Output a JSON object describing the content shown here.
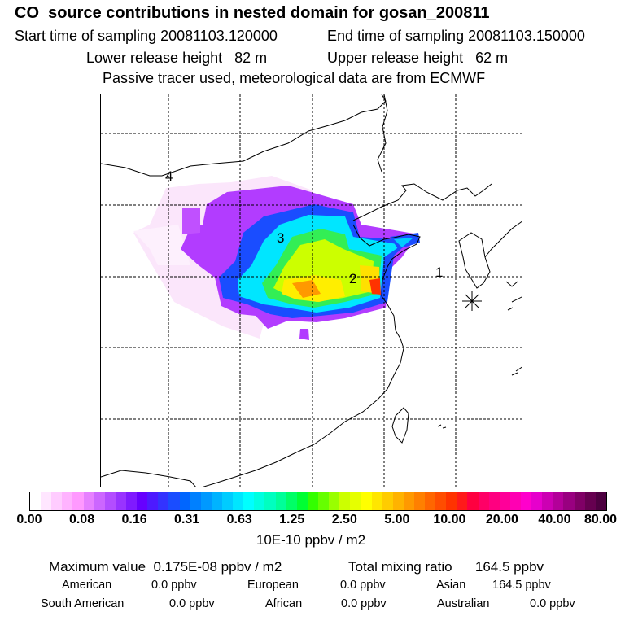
{
  "header": {
    "title": "CO  source contributions in nested domain for gosan_200811",
    "start_time": "Start time of sampling 20081103.120000",
    "end_time": "End time of sampling 20081103.150000",
    "lower_height": "Lower release height   82 m",
    "upper_height": "Upper release height   62 m",
    "tracer_note": "Passive tracer used, meteorological data are from ECMWF"
  },
  "map": {
    "station_labels": [
      "1",
      "2",
      "3",
      "4"
    ],
    "receptor_marker": "asterisk-marker"
  },
  "colorbar": {
    "tick_labels": [
      "0.00",
      "0.08",
      "0.16",
      "0.31",
      "0.63",
      "1.25",
      "2.50",
      "5.00",
      "10.00",
      "20.00",
      "40.00",
      "80.00"
    ],
    "units": "10E-10 ppbv / m2",
    "colors": [
      "#ffffff",
      "#ffe6ff",
      "#ffccff",
      "#ffb3ff",
      "#ff99ff",
      "#e680ff",
      "#cc66ff",
      "#b34dff",
      "#9933ff",
      "#7f1aff",
      "#6600ff",
      "#4d1aff",
      "#3333ff",
      "#1a4dff",
      "#0066ff",
      "#0080ff",
      "#0099ff",
      "#00b3ff",
      "#00ccff",
      "#00e6ff",
      "#00ffff",
      "#00ffe0",
      "#00ffc0",
      "#00ff99",
      "#00ff66",
      "#00ff33",
      "#33ff00",
      "#66ff00",
      "#99ff00",
      "#ccff00",
      "#e6ff00",
      "#ffff00",
      "#ffe600",
      "#ffcc00",
      "#ffb300",
      "#ff9900",
      "#ff8000",
      "#ff6600",
      "#ff4d00",
      "#ff3300",
      "#ff1a1a",
      "#ff0040",
      "#ff0066",
      "#ff0080",
      "#ff0099",
      "#ff00b3",
      "#ff00cc",
      "#e600cc",
      "#cc00b3",
      "#b30099",
      "#990080",
      "#800066",
      "#660050",
      "#4d0040"
    ]
  },
  "footer": {
    "max_value": "Maximum value  0.175E-08 ppbv / m2",
    "total_mixing": "Total mixing ratio      164.5 ppbv",
    "american_label": "American",
    "american_value": "0.0 ppbv",
    "european_label": "European",
    "european_value": "0.0 ppbv",
    "asian_label": "Asian",
    "asian_value": "164.5 ppbv",
    "south_american_label": "South American",
    "south_american_value": "0.0 ppbv",
    "african_label": "African",
    "african_value": "0.0 ppbv",
    "australian_label": "Australian",
    "australian_value": "0.0 ppbv"
  }
}
